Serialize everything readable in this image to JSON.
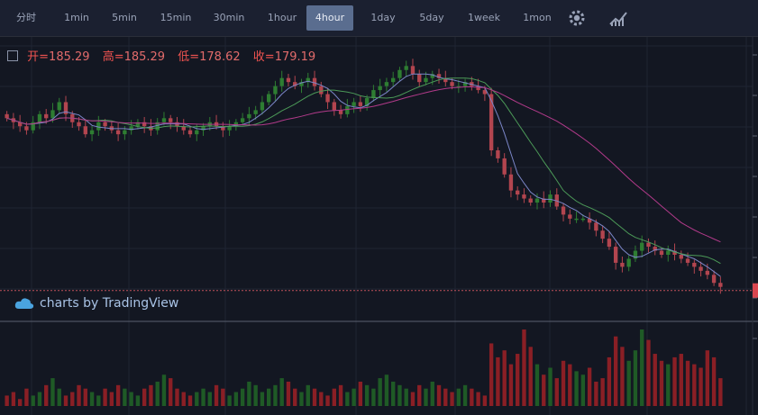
{
  "toolbar": {
    "intervals": [
      "分时",
      "1min",
      "5min",
      "15min",
      "30min",
      "1hour",
      "4hour",
      "1day",
      "5day",
      "1week",
      "1mon"
    ],
    "active": "4hour",
    "icons": [
      "gear-icon",
      "indicators-icon"
    ]
  },
  "legend": {
    "open_label": "开=",
    "open": "185.29",
    "high_label": "高=",
    "high": "185.29",
    "low_label": "低=",
    "low": "178.62",
    "close_label": "收=",
    "close": "179.19"
  },
  "watermark": "charts by TradingView",
  "colors": {
    "up": "#2e7d32",
    "down": "#b2454f",
    "bg": "#131722",
    "ma_fast": "#7b86c8",
    "ma_mid": "#4c9a58",
    "ma_slow": "#b23a8a"
  },
  "chart_data": {
    "type": "candlestick",
    "interval": "4hour",
    "grid": true,
    "candle_count": 110,
    "note_values": "prices in chart units; approximate reading",
    "close_series": [
      197,
      196,
      195,
      194,
      196,
      198,
      197,
      199,
      201,
      198,
      196,
      195,
      193,
      194,
      196,
      195,
      194,
      193,
      194,
      195,
      196,
      195,
      194,
      196,
      197,
      196,
      195,
      194,
      193,
      194,
      195,
      196,
      195,
      194,
      195,
      196,
      197,
      198,
      199,
      201,
      203,
      205,
      207,
      206,
      205,
      206,
      207,
      205,
      203,
      201,
      199,
      198,
      200,
      201,
      200,
      202,
      204,
      205,
      206,
      207,
      209,
      210,
      208,
      206,
      207,
      208,
      207,
      206,
      205,
      205,
      206,
      205,
      204,
      203,
      189,
      187,
      183,
      179,
      178,
      177,
      176,
      177,
      176,
      178,
      175,
      173,
      172,
      172,
      172,
      171,
      169,
      167,
      165,
      161,
      160,
      162,
      164,
      166,
      165,
      164,
      163,
      164,
      163,
      162,
      161,
      160,
      159,
      158,
      156,
      155
    ],
    "volume_series": [
      3,
      4,
      2,
      5,
      3,
      4,
      6,
      8,
      5,
      3,
      4,
      6,
      5,
      4,
      3,
      5,
      4,
      6,
      5,
      4,
      3,
      5,
      6,
      7,
      9,
      8,
      5,
      4,
      3,
      4,
      5,
      4,
      6,
      5,
      3,
      4,
      5,
      7,
      6,
      4,
      5,
      6,
      8,
      7,
      5,
      4,
      6,
      5,
      4,
      3,
      5,
      6,
      4,
      5,
      7,
      6,
      5,
      8,
      9,
      7,
      6,
      5,
      4,
      6,
      5,
      7,
      6,
      5,
      4,
      5,
      6,
      5,
      4,
      3,
      18,
      14,
      16,
      12,
      15,
      22,
      17,
      12,
      9,
      11,
      8,
      13,
      12,
      10,
      9,
      11,
      7,
      8,
      14,
      20,
      17,
      13,
      16,
      22,
      19,
      15,
      13,
      12,
      14,
      15,
      13,
      12,
      11,
      16,
      14,
      8
    ]
  }
}
